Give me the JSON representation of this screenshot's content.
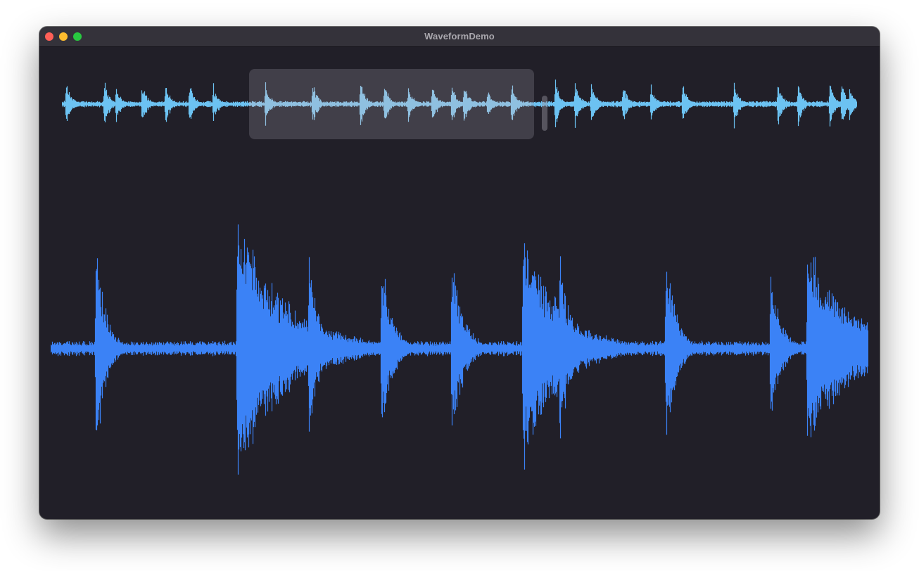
{
  "window": {
    "title": "WaveformDemo"
  },
  "colors": {
    "window_background": "#211f28",
    "titlebar": "#34323a",
    "overview_waveform": "#6cc2f2",
    "overview_waveform_selected": "#8dd1f8",
    "detail_waveform": "#3b82f6",
    "selection_overlay": "rgba(150,148,160,0.28)"
  },
  "icons": {
    "close": "traffic-light-close",
    "minimize": "traffic-light-minimize",
    "zoom": "traffic-light-zoom"
  },
  "overview": {
    "seed": 7,
    "baseline_level": 0.08,
    "transients": [
      {
        "t": 0.005,
        "amp": 0.95
      },
      {
        "t": 0.053,
        "amp": 0.95
      },
      {
        "t": 0.068,
        "amp": 0.7
      },
      {
        "t": 0.1,
        "amp": 0.88
      },
      {
        "t": 0.13,
        "amp": 0.8
      },
      {
        "t": 0.16,
        "amp": 0.85
      },
      {
        "t": 0.19,
        "amp": 0.75
      },
      {
        "t": 0.255,
        "amp": 0.9
      },
      {
        "t": 0.315,
        "amp": 0.85
      },
      {
        "t": 0.375,
        "amp": 0.95
      },
      {
        "t": 0.405,
        "amp": 0.85
      },
      {
        "t": 0.435,
        "amp": 0.8
      },
      {
        "t": 0.465,
        "amp": 0.9
      },
      {
        "t": 0.49,
        "amp": 0.8
      },
      {
        "t": 0.505,
        "amp": 0.95
      },
      {
        "t": 0.535,
        "amp": 0.6
      },
      {
        "t": 0.565,
        "amp": 0.9
      },
      {
        "t": 0.62,
        "amp": 0.9
      },
      {
        "t": 0.645,
        "amp": 0.95
      },
      {
        "t": 0.665,
        "amp": 0.9
      },
      {
        "t": 0.705,
        "amp": 0.8
      },
      {
        "t": 0.74,
        "amp": 0.8
      },
      {
        "t": 0.78,
        "amp": 0.85
      },
      {
        "t": 0.845,
        "amp": 0.9
      },
      {
        "t": 0.9,
        "amp": 0.95
      },
      {
        "t": 0.925,
        "amp": 0.9
      },
      {
        "t": 0.965,
        "amp": 0.9
      },
      {
        "t": 0.98,
        "amp": 0.85
      },
      {
        "t": 0.99,
        "amp": 0.7
      }
    ],
    "selection": {
      "start": 0.235,
      "end": 0.59
    }
  },
  "detail": {
    "seed": 13,
    "baseline_level": 0.04,
    "transients": [
      {
        "t": 0.055,
        "amp": 0.85,
        "decay": 0.012
      },
      {
        "t": 0.228,
        "amp": 1.0,
        "decay": 0.06
      },
      {
        "t": 0.315,
        "amp": 0.82,
        "decay": 0.012
      },
      {
        "t": 0.404,
        "amp": 0.82,
        "decay": 0.012
      },
      {
        "t": 0.49,
        "amp": 0.78,
        "decay": 0.014
      },
      {
        "t": 0.577,
        "amp": 0.93,
        "decay": 0.045
      },
      {
        "t": 0.622,
        "amp": 0.8,
        "decay": 0.012
      },
      {
        "t": 0.752,
        "amp": 0.83,
        "decay": 0.012
      },
      {
        "t": 0.88,
        "amp": 0.68,
        "decay": 0.012
      },
      {
        "t": 0.925,
        "amp": 0.78,
        "decay": 0.055
      }
    ]
  }
}
